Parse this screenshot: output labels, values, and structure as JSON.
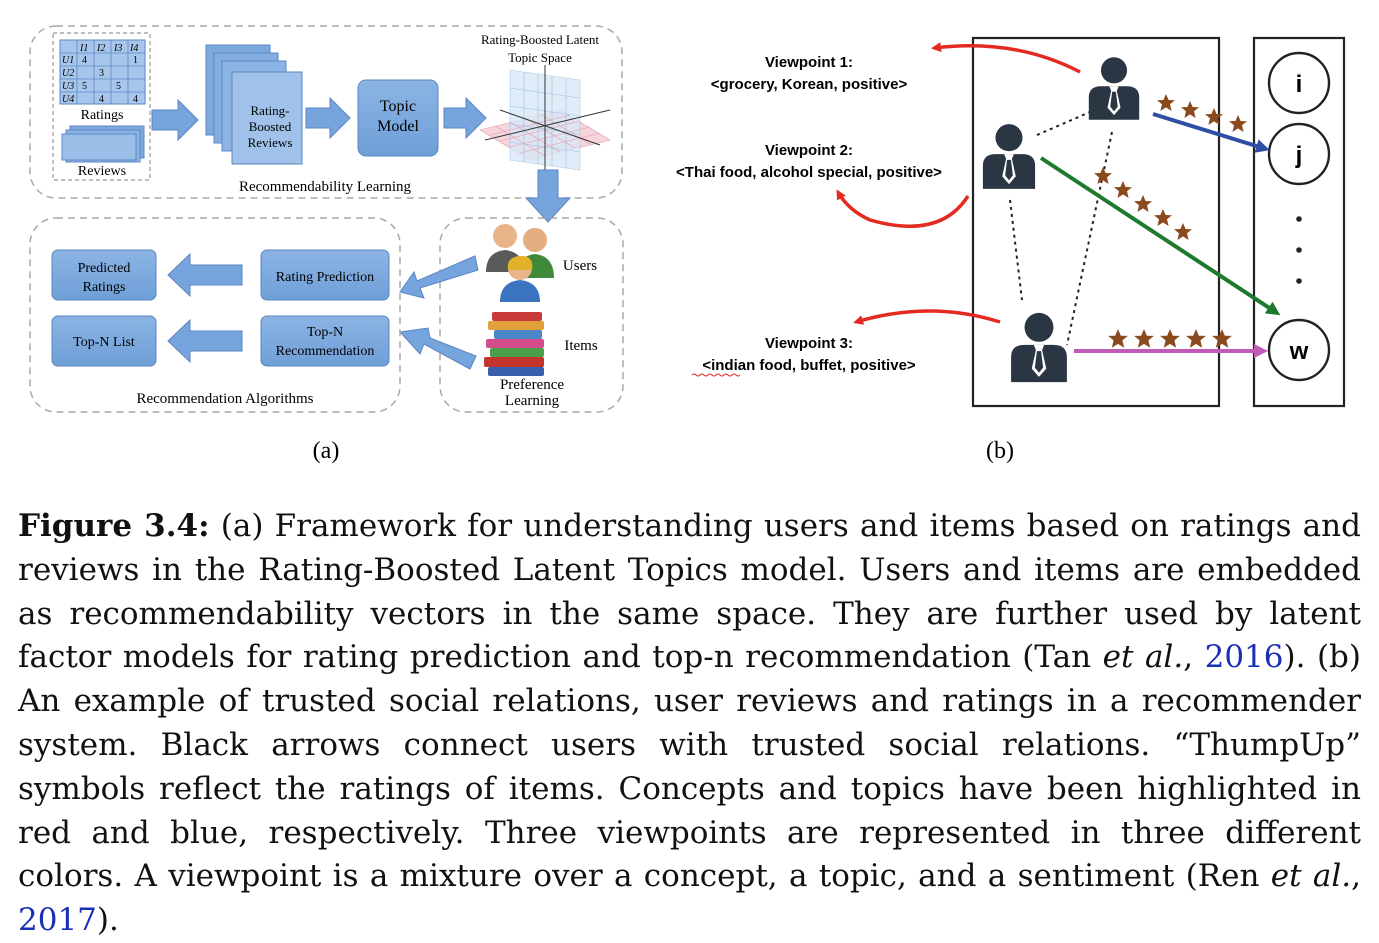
{
  "panel_a": {
    "ratings": {
      "col_headers": [
        "I1",
        "I2",
        "I3",
        "I4"
      ],
      "row_headers": [
        "U1",
        "U2",
        "U3",
        "U4"
      ],
      "rows": [
        [
          "4",
          "",
          "",
          "1"
        ],
        [
          "",
          "3",
          "",
          ""
        ],
        [
          "5",
          "",
          "5",
          ""
        ],
        [
          "",
          "4",
          "",
          "4"
        ]
      ],
      "label": "Ratings"
    },
    "reviews_label": "Reviews",
    "boosted_label": [
      "Rating-",
      "Boosted",
      "Reviews"
    ],
    "topic_model_label": [
      "Topic",
      "Model"
    ],
    "topic_space_label": [
      "Rating-Boosted Latent",
      "Topic Space"
    ],
    "learning_label": "Recommendability Learning",
    "users_label": "Users",
    "items_label": "Items",
    "preference_label": [
      "Preference",
      "Learning"
    ],
    "rating_prediction_label": "Rating Prediction",
    "topn_label": [
      "Top-N",
      "Recommendation"
    ],
    "predicted_label": [
      "Predicted",
      "Ratings"
    ],
    "topn_list_label": "Top-N List",
    "algorithms_label": "Recommendation Algorithms",
    "panel_label": "(a)"
  },
  "panel_b": {
    "viewpoint1": {
      "title": "Viewpoint 1:",
      "text": "<grocery, Korean, positive>"
    },
    "viewpoint2": {
      "title": "Viewpoint 2:",
      "text": "<Thai food, alcohol special, positive>"
    },
    "viewpoint3": {
      "title": "Viewpoint 3:",
      "text": "<indian food, buffet, positive>"
    },
    "items": [
      "i",
      "j",
      "w"
    ],
    "ellipsis": ".\n.\n.",
    "panel_label": "(b)",
    "colors": {
      "red": "#e32b22",
      "blue": "#2f4fa6",
      "green": "#1f7a2e",
      "pink": "#c25ab8",
      "star": "#8a4a1e",
      "user": "#2b3644"
    }
  },
  "caption": {
    "label": "Figure 3.4:",
    "part1": " (a) Framework for understanding users and items based on ratings and reviews in the Rating-Boosted Latent Topics model. Users and items are embedded as recommendability vectors in the same space. They are further used by latent factor models for rating prediction and top-n recommendation (Tan ",
    "etal1": "et al.",
    "comma1": ", ",
    "cite1": "2016",
    "part2": "). (b) An example of trusted social relations, user reviews and ratings in a recommender system. Black arrows connect users with trusted social relations. “ThumpUp” symbols reflect the ratings of items. Concepts and topics have been highlighted in red and blue, respectively. Three viewpoints are represented in three different colors. A viewpoint is a mixture over a concept, a topic, and a sentiment (Ren ",
    "etal2": "et al.",
    "comma2": ", ",
    "cite2": "2017",
    "part3": ")."
  }
}
